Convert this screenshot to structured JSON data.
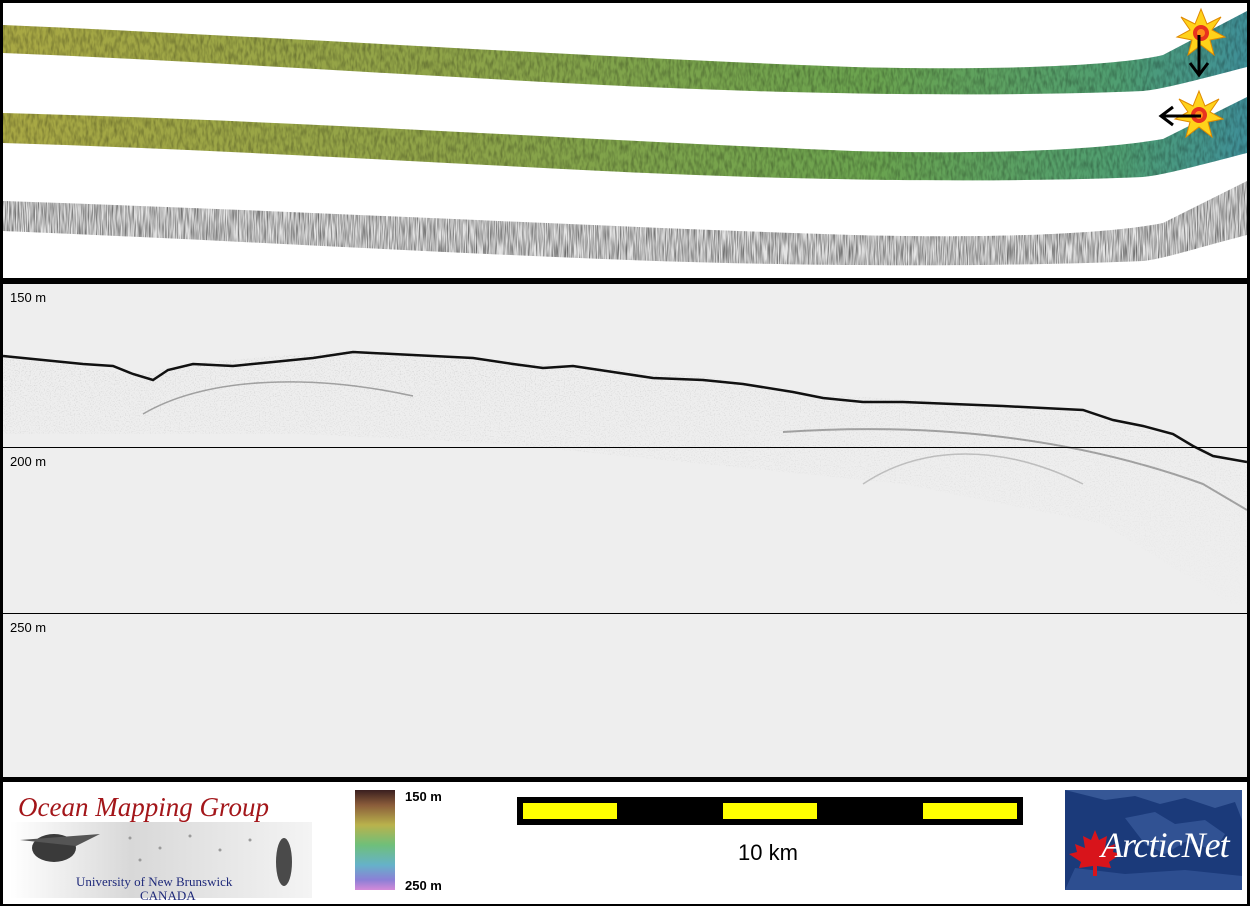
{
  "profile": {
    "depth_labels": [
      "150 m",
      "200 m",
      "250 m"
    ]
  },
  "legend": {
    "colorbar_top": "150 m",
    "colorbar_bottom": "250 m"
  },
  "scalebar": {
    "label": "10 km",
    "colors": [
      "#ffff00",
      "#000000"
    ]
  },
  "logos": {
    "omg_title": "Ocean Mapping Group",
    "omg_line1": "University of New Brunswick",
    "omg_line2": "CANADA",
    "arcticnet": "ArcticNet"
  },
  "icons": [
    "starburst-icon",
    "arrow-down-icon",
    "arrow-left-icon"
  ],
  "colors": {
    "frame": "#000000",
    "omg_red": "#a3161a",
    "omg_blue": "#1f2a7a",
    "arcticnet_blue": "#1b3a7a",
    "maple_red": "#d8141b"
  }
}
